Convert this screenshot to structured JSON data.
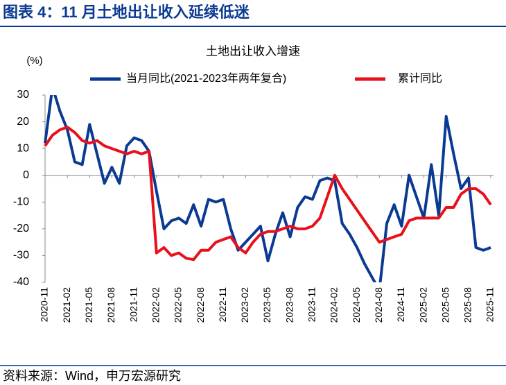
{
  "header": {
    "title": "图表 4：11 月土地出让收入延续低迷"
  },
  "chart_data": {
    "type": "line",
    "title": "土地出让收入增速",
    "y_unit": "(%)",
    "categories": [
      "2020-11",
      null,
      null,
      "2021-02",
      null,
      null,
      "2021-05",
      null,
      null,
      "2021-08",
      null,
      null,
      "2021-11",
      null,
      null,
      "2022-02",
      null,
      null,
      "2022-05",
      null,
      null,
      "2022-08",
      null,
      null,
      "2022-11",
      null,
      null,
      "2023-02",
      null,
      null,
      "2023-05",
      null,
      null,
      "2023-08",
      null,
      null,
      "2023-11",
      null,
      null,
      "2024-02",
      null,
      null,
      "2024-05",
      null,
      null,
      "2024-08",
      null,
      null,
      "2024-11",
      null,
      null,
      "2025-02",
      null,
      null,
      "2025-05",
      null,
      null,
      "2025-08",
      null,
      null,
      "2025-11"
    ],
    "series": [
      {
        "name": "当月同比(2021-2023年两年复合)",
        "color": "#0a3a91",
        "values": [
          12,
          33,
          24,
          17,
          5,
          4,
          19,
          8,
          -3,
          3,
          -3,
          11,
          14,
          13,
          9,
          -6,
          -20,
          -17,
          -16,
          -18,
          -11,
          -19,
          -9,
          -10,
          -9,
          -20,
          -28,
          -25,
          -22,
          -19,
          -32,
          -22,
          -14,
          -23,
          -12,
          -8,
          -9,
          -2,
          -1,
          -2,
          -18,
          -22,
          -27,
          -33,
          -38,
          -43,
          -18,
          -11,
          -19,
          0,
          -8,
          -16,
          4,
          -15,
          22,
          8,
          -5,
          -1,
          -27,
          -28,
          -27
        ]
      },
      {
        "name": "累计同比",
        "color": "#e8101b",
        "values": [
          11,
          15,
          17,
          18,
          16,
          13,
          12,
          13,
          11,
          10,
          9,
          8,
          9,
          8,
          9,
          -29,
          -27,
          -30,
          -29,
          -31,
          -31.5,
          -28,
          -28,
          -25,
          -24,
          -23,
          -27,
          -29,
          -25,
          -22,
          -21,
          -21,
          -20,
          -19,
          -20,
          -20,
          -19,
          -16,
          -8,
          0,
          -5,
          -9,
          -13,
          -17,
          -21,
          -25,
          -24,
          -23,
          -22,
          -17,
          -16,
          -16,
          -16,
          -16,
          -12,
          -12,
          -7,
          -5,
          -5,
          -7,
          -11
        ]
      }
    ],
    "ylim": [
      -40,
      30
    ],
    "yticks": [
      -40,
      -30,
      -20,
      -10,
      0,
      10,
      20,
      30
    ]
  },
  "footer": {
    "source": "资料来源：Wind，申万宏源研究"
  }
}
